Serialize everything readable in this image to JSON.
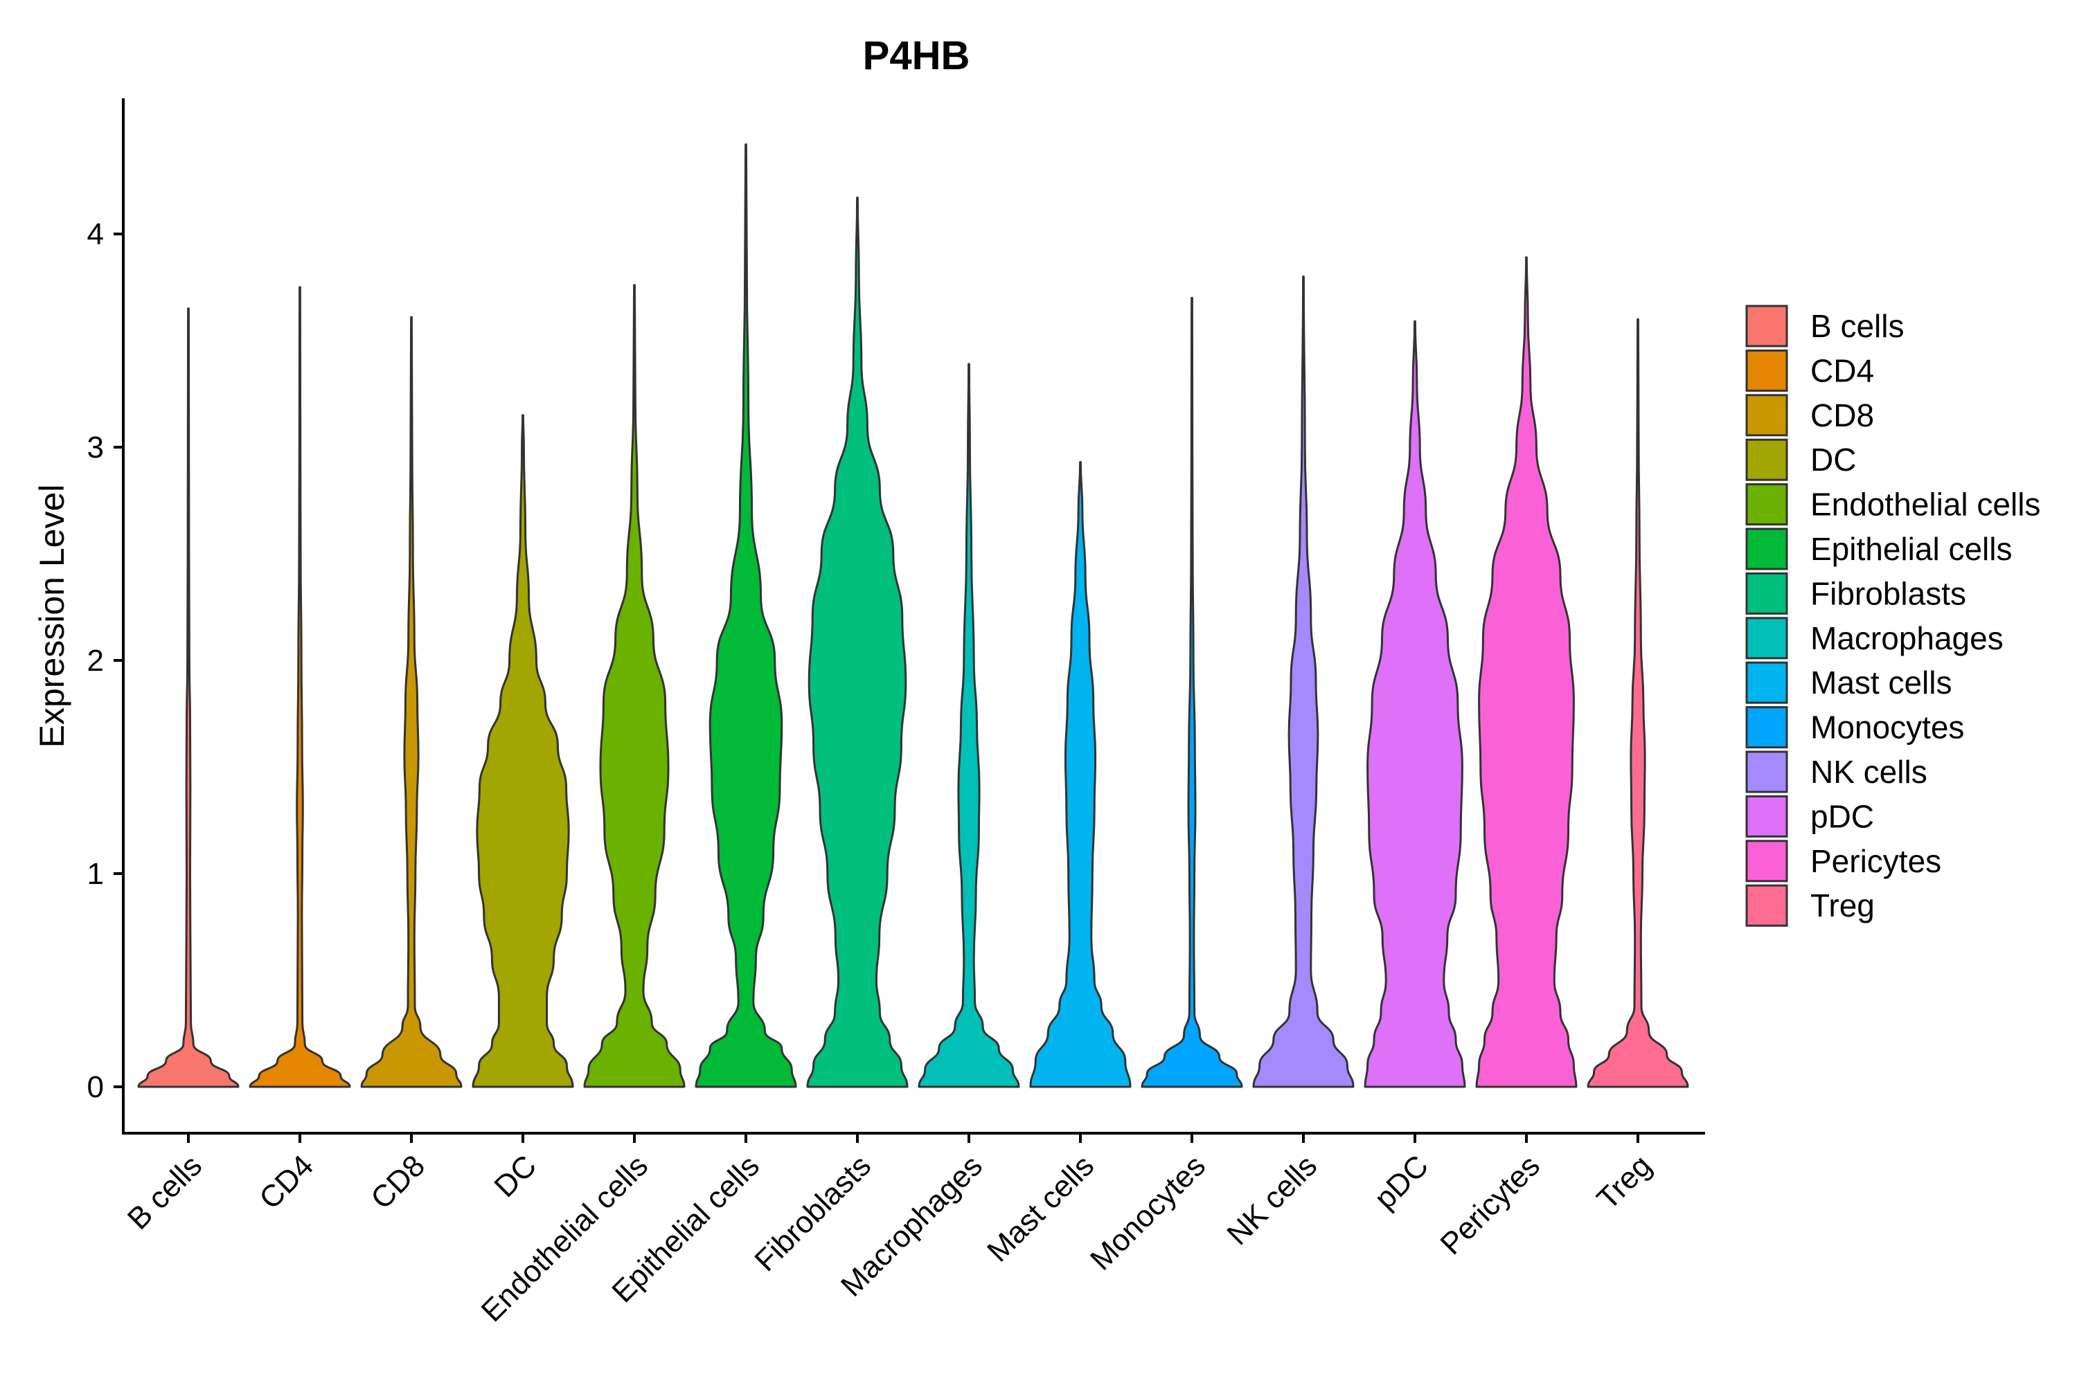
{
  "chart_data": {
    "type": "violin",
    "title": "P4HB",
    "xlabel": "",
    "ylabel": "Expression Level",
    "ylim": [
      -0.2,
      4.6
    ],
    "yticks": [
      0,
      1,
      2,
      3,
      4
    ],
    "grid": false,
    "legend_position": "right",
    "categories": [
      "B cells",
      "CD4",
      "CD8",
      "DC",
      "Endothelial cells",
      "Epithelial cells",
      "Fibroblasts",
      "Macrophages",
      "Mast cells",
      "Monocytes",
      "NK cells",
      "pDC",
      "Pericytes",
      "Treg"
    ],
    "series": [
      {
        "name": "B cells",
        "color": "#F8766D",
        "max": 3.65,
        "profile": [
          [
            0,
            1.0
          ],
          [
            0.05,
            0.82
          ],
          [
            0.12,
            0.45
          ],
          [
            0.2,
            0.1
          ],
          [
            0.3,
            0.05
          ],
          [
            0.7,
            0.04
          ],
          [
            1.0,
            0.035
          ],
          [
            1.4,
            0.04
          ],
          [
            1.7,
            0.035
          ],
          [
            2.0,
            0.02
          ],
          [
            2.5,
            0.012
          ],
          [
            3.0,
            0.01
          ],
          [
            3.65,
            0.006
          ]
        ]
      },
      {
        "name": "CD4",
        "color": "#E58700",
        "max": 3.75,
        "profile": [
          [
            0,
            1.0
          ],
          [
            0.05,
            0.82
          ],
          [
            0.12,
            0.45
          ],
          [
            0.2,
            0.1
          ],
          [
            0.3,
            0.05
          ],
          [
            0.8,
            0.04
          ],
          [
            1.1,
            0.05
          ],
          [
            1.3,
            0.06
          ],
          [
            1.6,
            0.045
          ],
          [
            2.0,
            0.03
          ],
          [
            2.5,
            0.015
          ],
          [
            3.0,
            0.01
          ],
          [
            3.75,
            0.006
          ]
        ]
      },
      {
        "name": "CD8",
        "color": "#C99800",
        "max": 3.61,
        "profile": [
          [
            0,
            1.0
          ],
          [
            0.06,
            0.9
          ],
          [
            0.15,
            0.58
          ],
          [
            0.28,
            0.18
          ],
          [
            0.38,
            0.07
          ],
          [
            0.7,
            0.06
          ],
          [
            1.0,
            0.08
          ],
          [
            1.3,
            0.11
          ],
          [
            1.55,
            0.14
          ],
          [
            1.8,
            0.12
          ],
          [
            2.1,
            0.06
          ],
          [
            2.5,
            0.03
          ],
          [
            3.0,
            0.015
          ],
          [
            3.61,
            0.006
          ]
        ]
      },
      {
        "name": "DC",
        "color": "#A3A500",
        "max": 3.15,
        "profile": [
          [
            0,
            1.0
          ],
          [
            0.1,
            0.88
          ],
          [
            0.2,
            0.62
          ],
          [
            0.3,
            0.48
          ],
          [
            0.42,
            0.48
          ],
          [
            0.6,
            0.62
          ],
          [
            0.8,
            0.78
          ],
          [
            1.0,
            0.88
          ],
          [
            1.2,
            0.92
          ],
          [
            1.4,
            0.87
          ],
          [
            1.6,
            0.7
          ],
          [
            1.8,
            0.45
          ],
          [
            2.0,
            0.27
          ],
          [
            2.3,
            0.12
          ],
          [
            2.6,
            0.05
          ],
          [
            3.0,
            0.02
          ],
          [
            3.15,
            0.006
          ]
        ]
      },
      {
        "name": "Endothelial cells",
        "color": "#6BB100",
        "max": 3.76,
        "profile": [
          [
            0,
            1.0
          ],
          [
            0.08,
            0.92
          ],
          [
            0.2,
            0.65
          ],
          [
            0.3,
            0.35
          ],
          [
            0.45,
            0.18
          ],
          [
            0.65,
            0.26
          ],
          [
            0.9,
            0.42
          ],
          [
            1.2,
            0.6
          ],
          [
            1.5,
            0.68
          ],
          [
            1.8,
            0.62
          ],
          [
            2.1,
            0.38
          ],
          [
            2.4,
            0.15
          ],
          [
            2.8,
            0.06
          ],
          [
            3.2,
            0.02
          ],
          [
            3.76,
            0.006
          ]
        ]
      },
      {
        "name": "Epithelial cells",
        "color": "#00BA38",
        "max": 4.42,
        "profile": [
          [
            0,
            1.0
          ],
          [
            0.08,
            0.92
          ],
          [
            0.18,
            0.72
          ],
          [
            0.26,
            0.38
          ],
          [
            0.4,
            0.15
          ],
          [
            0.6,
            0.2
          ],
          [
            0.8,
            0.35
          ],
          [
            1.1,
            0.55
          ],
          [
            1.4,
            0.68
          ],
          [
            1.7,
            0.72
          ],
          [
            2.0,
            0.58
          ],
          [
            2.3,
            0.3
          ],
          [
            2.7,
            0.12
          ],
          [
            3.2,
            0.05
          ],
          [
            3.8,
            0.02
          ],
          [
            4.42,
            0.006
          ]
        ]
      },
      {
        "name": "Fibroblasts",
        "color": "#00BF7D",
        "max": 4.17,
        "profile": [
          [
            0,
            1.0
          ],
          [
            0.1,
            0.88
          ],
          [
            0.22,
            0.65
          ],
          [
            0.35,
            0.45
          ],
          [
            0.5,
            0.38
          ],
          [
            0.7,
            0.44
          ],
          [
            1.0,
            0.6
          ],
          [
            1.3,
            0.75
          ],
          [
            1.6,
            0.88
          ],
          [
            1.9,
            0.97
          ],
          [
            2.2,
            0.9
          ],
          [
            2.5,
            0.72
          ],
          [
            2.8,
            0.45
          ],
          [
            3.1,
            0.2
          ],
          [
            3.4,
            0.08
          ],
          [
            3.8,
            0.03
          ],
          [
            4.17,
            0.006
          ]
        ]
      },
      {
        "name": "Macrophages",
        "color": "#00C0B8",
        "max": 3.39,
        "profile": [
          [
            0,
            1.0
          ],
          [
            0.08,
            0.88
          ],
          [
            0.18,
            0.6
          ],
          [
            0.28,
            0.28
          ],
          [
            0.4,
            0.12
          ],
          [
            0.6,
            0.1
          ],
          [
            0.9,
            0.14
          ],
          [
            1.2,
            0.2
          ],
          [
            1.4,
            0.21
          ],
          [
            1.7,
            0.16
          ],
          [
            2.0,
            0.1
          ],
          [
            2.5,
            0.05
          ],
          [
            3.0,
            0.02
          ],
          [
            3.39,
            0.006
          ]
        ]
      },
      {
        "name": "Mast cells",
        "color": "#00B4EF",
        "max": 2.93,
        "profile": [
          [
            0,
            1.0
          ],
          [
            0.12,
            0.9
          ],
          [
            0.25,
            0.65
          ],
          [
            0.38,
            0.42
          ],
          [
            0.5,
            0.28
          ],
          [
            0.7,
            0.22
          ],
          [
            1.0,
            0.24
          ],
          [
            1.3,
            0.28
          ],
          [
            1.55,
            0.3
          ],
          [
            1.8,
            0.26
          ],
          [
            2.1,
            0.18
          ],
          [
            2.4,
            0.1
          ],
          [
            2.7,
            0.04
          ],
          [
            2.93,
            0.006
          ]
        ]
      },
      {
        "name": "Monocytes",
        "color": "#00A5FF",
        "max": 3.7,
        "profile": [
          [
            0,
            1.0
          ],
          [
            0.06,
            0.9
          ],
          [
            0.14,
            0.55
          ],
          [
            0.24,
            0.16
          ],
          [
            0.35,
            0.05
          ],
          [
            0.7,
            0.04
          ],
          [
            1.0,
            0.05
          ],
          [
            1.3,
            0.07
          ],
          [
            1.6,
            0.06
          ],
          [
            2.0,
            0.03
          ],
          [
            2.5,
            0.015
          ],
          [
            3.0,
            0.01
          ],
          [
            3.7,
            0.006
          ]
        ]
      },
      {
        "name": "NK cells",
        "color": "#A58AFF",
        "max": 3.8,
        "profile": [
          [
            0,
            1.0
          ],
          [
            0.1,
            0.88
          ],
          [
            0.22,
            0.6
          ],
          [
            0.35,
            0.28
          ],
          [
            0.55,
            0.15
          ],
          [
            0.8,
            0.16
          ],
          [
            1.1,
            0.2
          ],
          [
            1.4,
            0.26
          ],
          [
            1.65,
            0.29
          ],
          [
            1.9,
            0.25
          ],
          [
            2.2,
            0.15
          ],
          [
            2.6,
            0.07
          ],
          [
            3.0,
            0.03
          ],
          [
            3.8,
            0.006
          ]
        ]
      },
      {
        "name": "pDC",
        "color": "#DF70F8",
        "max": 3.59,
        "profile": [
          [
            0,
            1.0
          ],
          [
            0.1,
            0.95
          ],
          [
            0.22,
            0.82
          ],
          [
            0.35,
            0.68
          ],
          [
            0.5,
            0.58
          ],
          [
            0.7,
            0.65
          ],
          [
            0.9,
            0.82
          ],
          [
            1.2,
            0.92
          ],
          [
            1.5,
            0.95
          ],
          [
            1.8,
            0.86
          ],
          [
            2.1,
            0.66
          ],
          [
            2.4,
            0.42
          ],
          [
            2.7,
            0.22
          ],
          [
            3.0,
            0.1
          ],
          [
            3.3,
            0.04
          ],
          [
            3.59,
            0.006
          ]
        ]
      },
      {
        "name": "Pericytes",
        "color": "#FB61D7",
        "max": 3.89,
        "profile": [
          [
            0,
            1.0
          ],
          [
            0.1,
            0.95
          ],
          [
            0.22,
            0.84
          ],
          [
            0.35,
            0.68
          ],
          [
            0.5,
            0.56
          ],
          [
            0.7,
            0.6
          ],
          [
            0.9,
            0.72
          ],
          [
            1.2,
            0.84
          ],
          [
            1.5,
            0.92
          ],
          [
            1.8,
            0.95
          ],
          [
            2.1,
            0.87
          ],
          [
            2.4,
            0.68
          ],
          [
            2.7,
            0.42
          ],
          [
            3.0,
            0.2
          ],
          [
            3.3,
            0.08
          ],
          [
            3.6,
            0.03
          ],
          [
            3.89,
            0.006
          ]
        ]
      },
      {
        "name": "Treg",
        "color": "#FF6C91",
        "max": 3.6,
        "profile": [
          [
            0,
            1.0
          ],
          [
            0.07,
            0.88
          ],
          [
            0.15,
            0.58
          ],
          [
            0.26,
            0.22
          ],
          [
            0.38,
            0.07
          ],
          [
            0.7,
            0.06
          ],
          [
            1.0,
            0.09
          ],
          [
            1.3,
            0.13
          ],
          [
            1.55,
            0.14
          ],
          [
            1.8,
            0.11
          ],
          [
            2.1,
            0.06
          ],
          [
            2.6,
            0.03
          ],
          [
            3.0,
            0.015
          ],
          [
            3.6,
            0.006
          ]
        ]
      }
    ]
  }
}
